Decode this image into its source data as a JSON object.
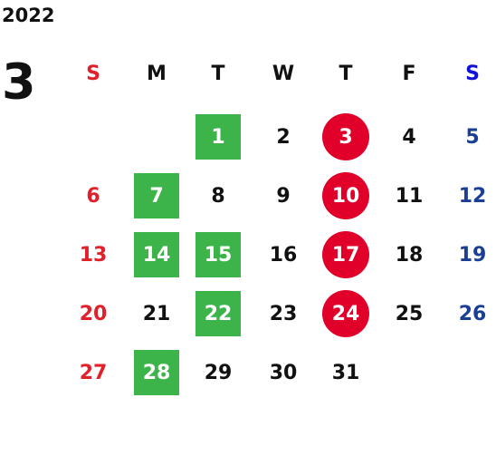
{
  "year": "2022",
  "month": "3",
  "weekdays": [
    "S",
    "M",
    "T",
    "W",
    "T",
    "F",
    "S"
  ],
  "header_colors": [
    "#e0202a",
    "#111111",
    "#111111",
    "#111111",
    "#111111",
    "#111111",
    "#1010d8"
  ],
  "day_colors": [
    "#e0202a",
    "#111111",
    "#111111",
    "#111111",
    "#111111",
    "#111111",
    "#1b3f95"
  ],
  "highlight_colors": {
    "square": "#3cb44a",
    "circle": "#e0002a"
  },
  "weeks": [
    [
      null,
      null,
      {
        "day": "1",
        "highlight": "square"
      },
      {
        "day": "2"
      },
      {
        "day": "3",
        "highlight": "circle"
      },
      {
        "day": "4"
      },
      {
        "day": "5"
      }
    ],
    [
      {
        "day": "6"
      },
      {
        "day": "7",
        "highlight": "square"
      },
      {
        "day": "8"
      },
      {
        "day": "9"
      },
      {
        "day": "10",
        "highlight": "circle"
      },
      {
        "day": "11"
      },
      {
        "day": "12"
      }
    ],
    [
      {
        "day": "13"
      },
      {
        "day": "14",
        "highlight": "square"
      },
      {
        "day": "15",
        "highlight": "square"
      },
      {
        "day": "16"
      },
      {
        "day": "17",
        "highlight": "circle"
      },
      {
        "day": "18"
      },
      {
        "day": "19"
      }
    ],
    [
      {
        "day": "20"
      },
      {
        "day": "21"
      },
      {
        "day": "22",
        "highlight": "square"
      },
      {
        "day": "23"
      },
      {
        "day": "24",
        "highlight": "circle"
      },
      {
        "day": "25"
      },
      {
        "day": "26"
      }
    ],
    [
      {
        "day": "27"
      },
      {
        "day": "28",
        "highlight": "square"
      },
      {
        "day": "29"
      },
      {
        "day": "30"
      },
      {
        "day": "31"
      },
      null,
      null
    ]
  ]
}
